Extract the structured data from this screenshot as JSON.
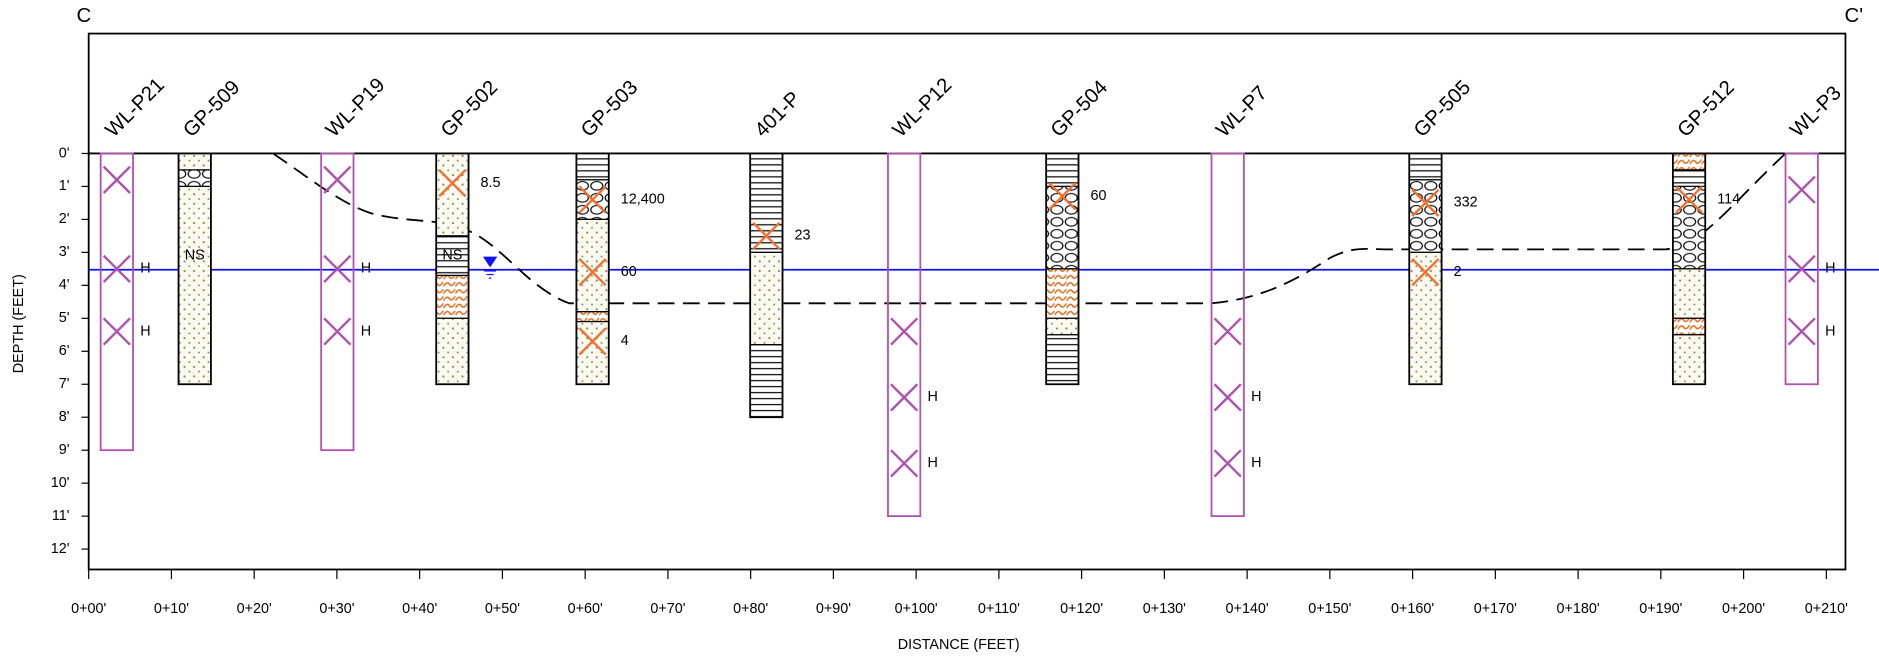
{
  "section": {
    "left_label": "C",
    "right_label": "C'"
  },
  "axes": {
    "y_label": "DEPTH (FEET)",
    "x_label": "DISTANCE (FEET)",
    "depth_ticks": [
      "0'",
      "1'",
      "2'",
      "3'",
      "4'",
      "5'",
      "6'",
      "7'",
      "8'",
      "9'",
      "10'",
      "11'",
      "12'"
    ],
    "distance_ticks": [
      "0+00'",
      "0+10'",
      "0+20'",
      "0+30'",
      "0+40'",
      "0+50'",
      "0+60'",
      "0+70'",
      "0+80'",
      "0+90'",
      "0+100'",
      "0+110'",
      "0+120'",
      "0+130'",
      "0+140'",
      "0+150'",
      "0+160'",
      "0+170'",
      "0+180'",
      "0+190'",
      "0+200'",
      "0+210'"
    ]
  },
  "borings": [
    {
      "name": "WL-P21",
      "labels": [
        "H",
        "H"
      ]
    },
    {
      "name": "GP-509",
      "notes": [
        "NS"
      ]
    },
    {
      "name": "WL-P19",
      "labels": [
        "H",
        "H"
      ]
    },
    {
      "name": "GP-502",
      "labels": [
        "8.5"
      ],
      "notes": [
        "NS"
      ]
    },
    {
      "name": "GP-503",
      "labels": [
        "12,400",
        "60",
        "4"
      ]
    },
    {
      "name": "401-P",
      "labels": [
        "23"
      ]
    },
    {
      "name": "WL-P12",
      "labels": [
        "H",
        "H"
      ]
    },
    {
      "name": "GP-504",
      "labels": [
        "60"
      ]
    },
    {
      "name": "WL-P7",
      "labels": [
        "H",
        "H"
      ]
    },
    {
      "name": "GP-505",
      "labels": [
        "332",
        "2"
      ]
    },
    {
      "name": "GP-512",
      "labels": [
        "114"
      ]
    },
    {
      "name": "WL-P3",
      "labels": [
        "H",
        "H"
      ]
    }
  ]
}
